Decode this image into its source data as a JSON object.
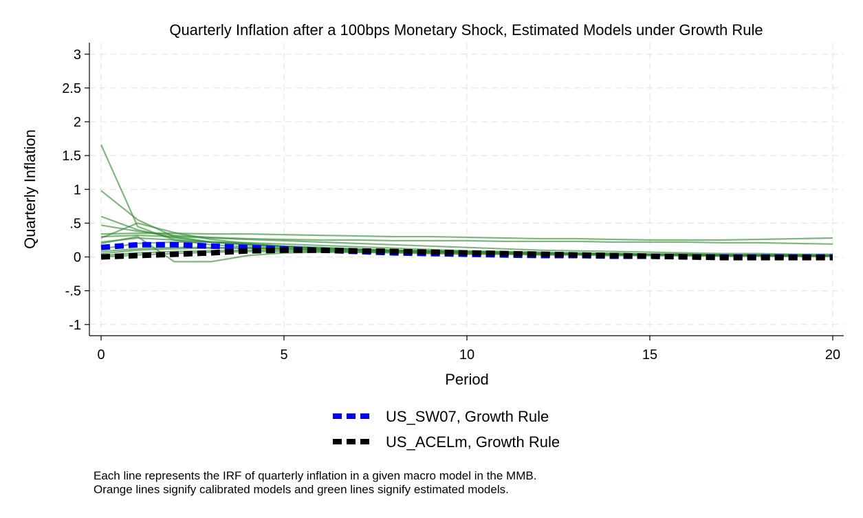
{
  "chart_data": {
    "type": "line",
    "title": "Quarterly Inflation after a 100bps Monetary Shock, Estimated Models under Growth Rule",
    "xlabel": "Period",
    "ylabel": "Quarterly Inflation",
    "xlim": [
      0,
      20
    ],
    "ylim": [
      -1.15,
      3.15
    ],
    "xticks": [
      0,
      5,
      10,
      15,
      20
    ],
    "xtick_labels": [
      "0",
      "5",
      "10",
      "15",
      "20"
    ],
    "yticks": [
      -1,
      -0.5,
      0,
      0.5,
      1,
      1.5,
      2,
      2.5,
      3
    ],
    "ytick_labels": [
      "-1",
      "-.5",
      "0",
      ".5",
      "1",
      "1.5",
      "2",
      "2.5",
      "3"
    ],
    "grid": true,
    "legend_position": "bottom",
    "colors": {
      "estimated": "#2e8b2e",
      "sw07": "#0000ff",
      "acel": "#000000"
    },
    "background_series": [
      {
        "x": [
          0,
          1,
          2,
          3,
          4,
          5,
          6,
          7,
          8,
          9,
          10,
          11,
          12,
          13,
          14,
          15,
          16,
          17,
          18,
          19,
          20
        ],
        "y": [
          1.66,
          0.45,
          0.25,
          0.18,
          0.15,
          0.13,
          0.11,
          0.1,
          0.09,
          0.08,
          0.07,
          0.06,
          0.05,
          0.05,
          0.04,
          0.04,
          0.03,
          0.03,
          0.03,
          0.02,
          0.02
        ]
      },
      {
        "x": [
          0,
          1,
          2,
          3,
          4,
          5,
          6,
          7,
          8,
          9,
          10,
          11,
          12,
          13,
          14,
          15,
          16,
          17,
          18,
          19,
          20
        ],
        "y": [
          0.98,
          0.55,
          0.3,
          0.22,
          0.18,
          0.15,
          0.13,
          0.11,
          0.1,
          0.08,
          0.07,
          0.06,
          0.05,
          0.05,
          0.04,
          0.04,
          0.03,
          0.03,
          0.03,
          0.02,
          0.02
        ]
      },
      {
        "x": [
          0,
          1,
          2,
          3,
          4,
          5,
          6,
          7,
          8,
          9,
          10,
          11,
          12,
          13,
          14,
          15,
          16,
          17,
          18,
          19,
          20
        ],
        "y": [
          0.6,
          0.4,
          0.28,
          0.22,
          0.18,
          0.15,
          0.13,
          0.11,
          0.1,
          0.09,
          0.08,
          0.07,
          0.06,
          0.05,
          0.05,
          0.04,
          0.04,
          0.03,
          0.03,
          0.03,
          0.02
        ]
      },
      {
        "x": [
          0,
          1,
          2,
          3,
          4,
          5,
          6,
          7,
          8,
          9,
          10,
          11,
          12,
          13,
          14,
          15,
          16,
          17,
          18,
          19,
          20
        ],
        "y": [
          0.47,
          0.38,
          0.32,
          0.29,
          0.27,
          0.26,
          0.25,
          0.25,
          0.24,
          0.24,
          0.24,
          0.23,
          0.23,
          0.23,
          0.22,
          0.22,
          0.22,
          0.21,
          0.21,
          0.2,
          0.19
        ]
      },
      {
        "x": [
          0,
          1,
          2,
          3,
          4,
          5,
          6,
          7,
          8,
          9,
          10,
          11,
          12,
          13,
          14,
          15,
          16,
          17,
          18,
          19,
          20
        ],
        "y": [
          0.28,
          0.5,
          0.36,
          0.26,
          0.2,
          0.16,
          0.13,
          0.11,
          0.09,
          0.08,
          0.07,
          0.06,
          0.05,
          0.04,
          0.04,
          0.03,
          0.03,
          0.02,
          0.02,
          0.02,
          0.02
        ]
      },
      {
        "x": [
          0,
          1,
          2,
          3,
          4,
          5,
          6,
          7,
          8,
          9,
          10,
          11,
          12,
          13,
          14,
          15,
          16,
          17,
          18,
          19,
          20
        ],
        "y": [
          0.34,
          0.35,
          0.35,
          0.34,
          0.34,
          0.33,
          0.32,
          0.31,
          0.3,
          0.3,
          0.29,
          0.28,
          0.27,
          0.27,
          0.26,
          0.25,
          0.25,
          0.25,
          0.26,
          0.27,
          0.28
        ]
      },
      {
        "x": [
          0,
          1,
          2,
          3,
          4,
          5,
          6,
          7,
          8,
          9,
          10,
          11,
          12,
          13,
          14,
          15,
          16,
          17,
          18,
          19,
          20
        ],
        "y": [
          0.3,
          0.32,
          0.3,
          0.28,
          0.26,
          0.24,
          0.22,
          0.2,
          0.18,
          0.16,
          0.14,
          0.12,
          0.1,
          0.09,
          0.08,
          0.07,
          0.06,
          0.05,
          0.05,
          0.04,
          0.04
        ]
      },
      {
        "x": [
          0,
          1,
          2,
          3,
          4,
          5,
          6,
          7,
          8,
          9,
          10,
          11,
          12,
          13,
          14,
          15,
          16,
          17,
          18,
          19,
          20
        ],
        "y": [
          0.2,
          0.3,
          -0.07,
          -0.07,
          0.02,
          0.06,
          0.07,
          0.07,
          0.06,
          0.05,
          0.04,
          0.04,
          0.03,
          0.03,
          0.02,
          0.02,
          0.02,
          0.01,
          0.01,
          0.01,
          0.01
        ]
      },
      {
        "x": [
          0,
          1,
          2,
          3,
          4,
          5,
          6,
          7,
          8,
          9,
          10,
          11,
          12,
          13,
          14,
          15,
          16,
          17,
          18,
          19,
          20
        ],
        "y": [
          0.22,
          0.28,
          0.25,
          0.22,
          0.19,
          0.16,
          0.14,
          0.12,
          0.1,
          0.09,
          0.08,
          0.07,
          0.06,
          0.05,
          0.05,
          0.04,
          0.04,
          0.03,
          0.03,
          0.03,
          0.02
        ]
      },
      {
        "x": [
          0,
          1,
          2,
          3,
          4,
          5,
          6,
          7,
          8,
          9,
          10,
          11,
          12,
          13,
          14,
          15,
          16,
          17,
          18,
          19,
          20
        ],
        "y": [
          0.12,
          0.2,
          0.22,
          0.22,
          0.21,
          0.19,
          0.17,
          0.15,
          0.13,
          0.11,
          0.09,
          0.08,
          0.07,
          0.06,
          0.05,
          0.04,
          0.04,
          0.03,
          0.03,
          0.02,
          0.02
        ]
      },
      {
        "x": [
          0,
          1,
          2,
          3,
          4,
          5,
          6,
          7,
          8,
          9,
          10,
          11,
          12,
          13,
          14,
          15,
          16,
          17,
          18,
          19,
          20
        ],
        "y": [
          0.05,
          0.1,
          0.12,
          0.13,
          0.13,
          0.12,
          0.11,
          0.1,
          0.09,
          0.08,
          0.07,
          0.06,
          0.05,
          0.05,
          0.04,
          0.04,
          0.03,
          0.03,
          0.02,
          0.02,
          0.02
        ]
      },
      {
        "x": [
          0,
          1,
          2,
          3,
          4,
          5,
          6,
          7,
          8,
          9,
          10,
          11,
          12,
          13,
          14,
          15,
          16,
          17,
          18,
          19,
          20
        ],
        "y": [
          0.02,
          0.06,
          0.08,
          0.09,
          0.1,
          0.1,
          0.09,
          0.09,
          0.08,
          0.07,
          0.06,
          0.06,
          0.05,
          0.04,
          0.04,
          0.03,
          0.03,
          0.02,
          0.02,
          0.02,
          0.01
        ]
      },
      {
        "x": [
          0,
          1,
          2,
          3,
          4,
          5,
          6,
          7,
          8,
          9,
          10,
          11,
          12,
          13,
          14,
          15,
          16,
          17,
          18,
          19,
          20
        ],
        "y": [
          0.08,
          0.12,
          0.14,
          0.14,
          0.13,
          0.12,
          0.1,
          0.09,
          0.08,
          0.07,
          0.06,
          0.05,
          0.04,
          0.04,
          0.03,
          0.03,
          0.02,
          0.02,
          0.02,
          0.01,
          0.01
        ]
      },
      {
        "x": [
          0,
          1,
          2,
          3,
          4,
          5,
          6,
          7,
          8,
          9,
          10,
          11,
          12,
          13,
          14,
          15,
          16,
          17,
          18,
          19,
          20
        ],
        "y": [
          0.0,
          0.03,
          0.05,
          0.07,
          0.08,
          0.08,
          0.08,
          0.07,
          0.07,
          0.06,
          0.05,
          0.05,
          0.04,
          0.04,
          0.03,
          0.03,
          0.02,
          0.02,
          0.02,
          0.01,
          0.01
        ]
      }
    ],
    "series": [
      {
        "name": "US_SW07, Growth Rule",
        "x": [
          0,
          1,
          2,
          3,
          4,
          5,
          6,
          7,
          8,
          9,
          10,
          11,
          12,
          13,
          14,
          15,
          16,
          17,
          18,
          19,
          20
        ],
        "y": [
          0.14,
          0.18,
          0.18,
          0.16,
          0.14,
          0.12,
          0.1,
          0.08,
          0.06,
          0.05,
          0.04,
          0.03,
          0.02,
          0.02,
          0.01,
          0.01,
          0.0,
          0.0,
          0.0,
          0.0,
          0.0
        ]
      },
      {
        "name": "US_ACELm, Growth Rule",
        "x": [
          0,
          1,
          2,
          3,
          4,
          5,
          6,
          7,
          8,
          9,
          10,
          11,
          12,
          13,
          14,
          15,
          16,
          17,
          18,
          19,
          20
        ],
        "y": [
          0.0,
          0.02,
          0.04,
          0.06,
          0.09,
          0.1,
          0.1,
          0.09,
          0.08,
          0.07,
          0.06,
          0.05,
          0.04,
          0.03,
          0.02,
          0.01,
          0.0,
          -0.01,
          -0.01,
          -0.01,
          -0.01
        ]
      }
    ]
  },
  "notes": [
    "Each line represents the IRF of quarterly inflation in a given macro model in the MMB.",
    "Orange lines signify calibrated models and green lines signify estimated models."
  ]
}
